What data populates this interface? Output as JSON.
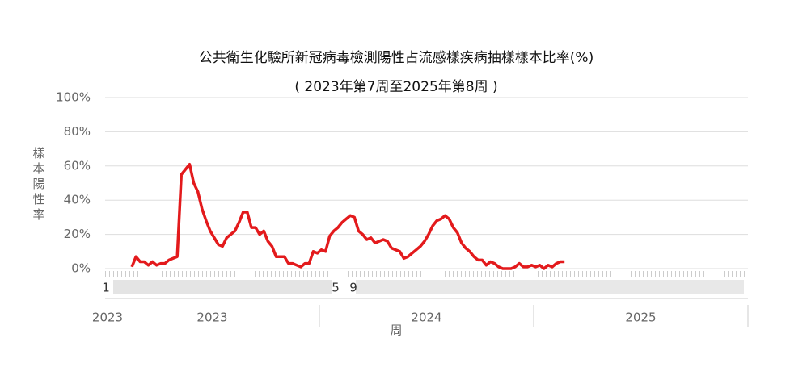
{
  "chart_data": {
    "type": "line",
    "title": "公共衛生化驗所新冠病毒檢測陽性占流感樣疾病抽樣樣本比率(%)",
    "subtitle": "( 2023年第7周至2025年第8周 )",
    "y_label": "樣本陽性率",
    "x_label": "周",
    "year_labels": [
      "2023",
      "2024",
      "2025"
    ],
    "axis_start_label": "2023",
    "week_labels": [
      "1",
      "5",
      "9"
    ],
    "series": [
      {
        "name": "樣本陽性率",
        "color": "#e31a1c",
        "values": [
          1,
          7,
          4,
          4,
          2,
          4,
          2,
          3,
          3,
          5,
          6,
          7,
          55,
          58,
          61,
          50,
          45,
          35,
          28,
          22,
          18,
          14,
          13,
          18,
          20,
          22,
          27,
          33,
          33,
          24,
          24,
          20,
          22,
          16,
          13,
          7,
          7,
          7,
          3,
          3,
          2,
          1,
          3,
          3,
          10,
          9,
          11,
          10,
          19,
          22,
          24,
          27,
          29,
          31,
          30,
          22,
          20,
          17,
          18,
          15,
          16,
          17,
          16,
          12,
          11,
          10,
          6,
          7,
          9,
          11,
          13,
          16,
          20,
          25,
          28,
          29,
          31,
          29,
          24,
          21,
          15,
          12,
          10,
          7,
          5,
          5,
          2,
          4,
          3,
          1,
          0,
          0,
          0,
          1,
          3,
          1,
          1,
          2,
          1,
          2,
          0,
          2,
          1,
          3,
          4,
          4
        ]
      }
    ],
    "ylim": [
      0,
      100
    ],
    "yticks": [
      {
        "value": 0,
        "label": "0%"
      },
      {
        "value": 20,
        "label": "20%"
      },
      {
        "value": 40,
        "label": "40%"
      },
      {
        "value": 60,
        "label": "60%"
      },
      {
        "value": 80,
        "label": "80%"
      },
      {
        "value": 100,
        "label": "100%"
      }
    ],
    "grid": true
  }
}
